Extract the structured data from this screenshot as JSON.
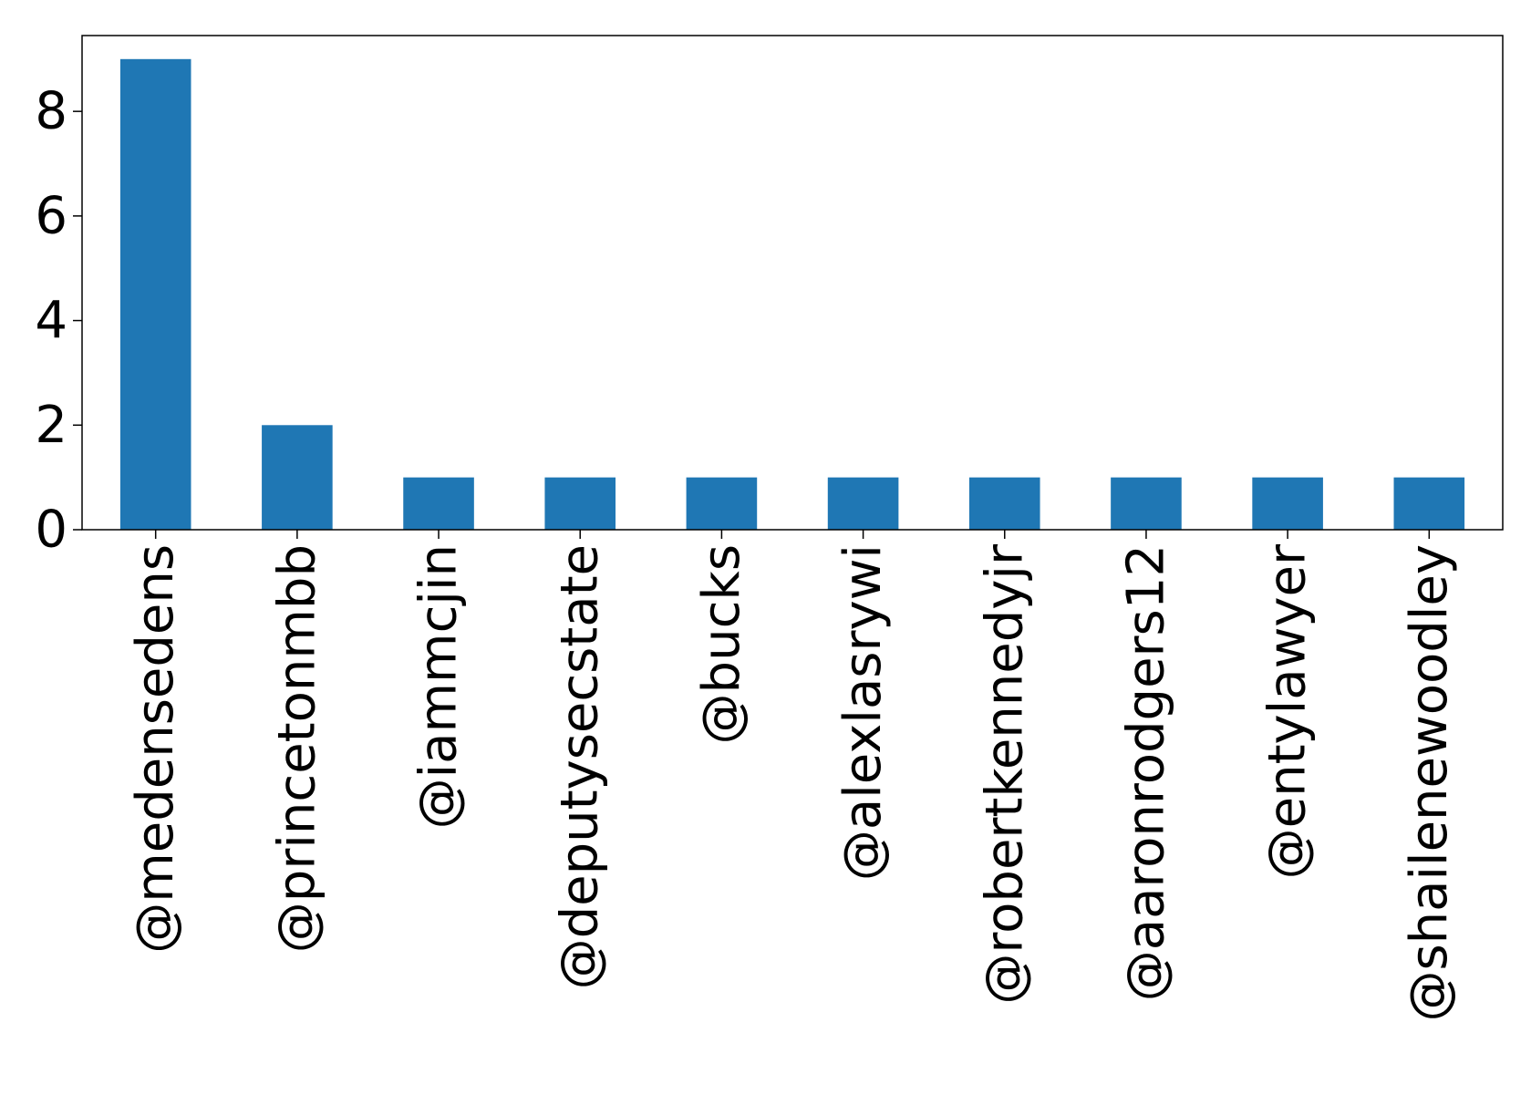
{
  "chart_data": {
    "type": "bar",
    "categories": [
      "@medensedens",
      "@princetonmbb",
      "@iammcjin",
      "@deputysecstate",
      "@bucks",
      "@alexlasrywi",
      "@robertkennedyjr",
      "@aaronrodgers12",
      "@entylawyer",
      "@shailenewoodley"
    ],
    "values": [
      9,
      2,
      1,
      1,
      1,
      1,
      1,
      1,
      1,
      1
    ],
    "title": "",
    "xlabel": "",
    "ylabel": "",
    "ylim": [
      0,
      9.45
    ],
    "yticks": [
      0,
      2,
      4,
      6,
      8
    ],
    "bar_color": "#1f77b4",
    "grid": false,
    "legend": "none"
  }
}
